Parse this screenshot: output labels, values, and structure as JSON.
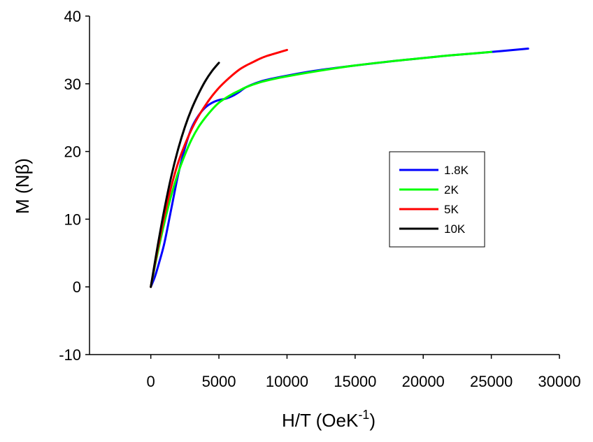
{
  "chart_data": {
    "type": "line",
    "xlabel": "H/T (OeK",
    "xlabel_superscript": "-1",
    "xlabel_suffix": ")",
    "ylabel": "M (Nβ)",
    "xlim": [
      -4500,
      30000
    ],
    "ylim": [
      -10,
      40
    ],
    "xticks": [
      0,
      5000,
      10000,
      15000,
      20000,
      25000,
      30000
    ],
    "yticks": [
      -10,
      0,
      10,
      20,
      30,
      40
    ],
    "grid": false,
    "legend_position": "right-middle",
    "series": [
      {
        "name": "1.8K",
        "color": "#0000ff",
        "x": [
          0,
          300,
          600,
          1000,
          1500,
          2000,
          2500,
          3000,
          3500,
          4000,
          4500,
          5000,
          5500,
          6000,
          6500,
          7000,
          8000,
          9000,
          10000,
          12000,
          15000,
          18000,
          20000,
          22000,
          25000,
          27700
        ],
        "y": [
          0,
          1.5,
          3.5,
          6.5,
          11.5,
          16.5,
          20.5,
          23.5,
          25.3,
          26.5,
          27.2,
          27.6,
          27.8,
          28.2,
          28.8,
          29.5,
          30.3,
          30.8,
          31.2,
          31.9,
          32.7,
          33.4,
          33.8,
          34.2,
          34.7,
          35.2
        ]
      },
      {
        "name": "2K",
        "color": "#00ff00",
        "x": [
          0,
          500,
          1000,
          1500,
          2000,
          2500,
          3000,
          3500,
          4000,
          4500,
          5000,
          5500,
          6000,
          6500,
          7000,
          8000,
          9000,
          10000,
          12000,
          15000,
          18000,
          20000,
          22000,
          25000
        ],
        "y": [
          0,
          5.0,
          9.5,
          13.5,
          16.8,
          19.5,
          21.8,
          23.6,
          25.0,
          26.2,
          27.2,
          27.9,
          28.5,
          29.0,
          29.5,
          30.2,
          30.7,
          31.1,
          31.8,
          32.7,
          33.4,
          33.8,
          34.2,
          34.7
        ]
      },
      {
        "name": "5K",
        "color": "#ff0000",
        "x": [
          0,
          500,
          1000,
          1500,
          2000,
          2500,
          3000,
          3500,
          4000,
          4500,
          5000,
          5500,
          6000,
          6500,
          7000,
          7500,
          8000,
          8500,
          9000,
          9500,
          10000
        ],
        "y": [
          0,
          5.5,
          10.5,
          14.8,
          18.3,
          21.0,
          23.3,
          25.2,
          26.8,
          28.2,
          29.4,
          30.4,
          31.3,
          32.1,
          32.7,
          33.2,
          33.7,
          34.1,
          34.4,
          34.7,
          35.0
        ]
      },
      {
        "name": "10K",
        "color": "#000000",
        "x": [
          0,
          500,
          1000,
          1500,
          2000,
          2500,
          3000,
          3500,
          4000,
          4500,
          5000
        ],
        "y": [
          0,
          6.0,
          11.5,
          16.3,
          20.3,
          23.6,
          26.3,
          28.5,
          30.4,
          31.9,
          33.1
        ]
      }
    ]
  }
}
